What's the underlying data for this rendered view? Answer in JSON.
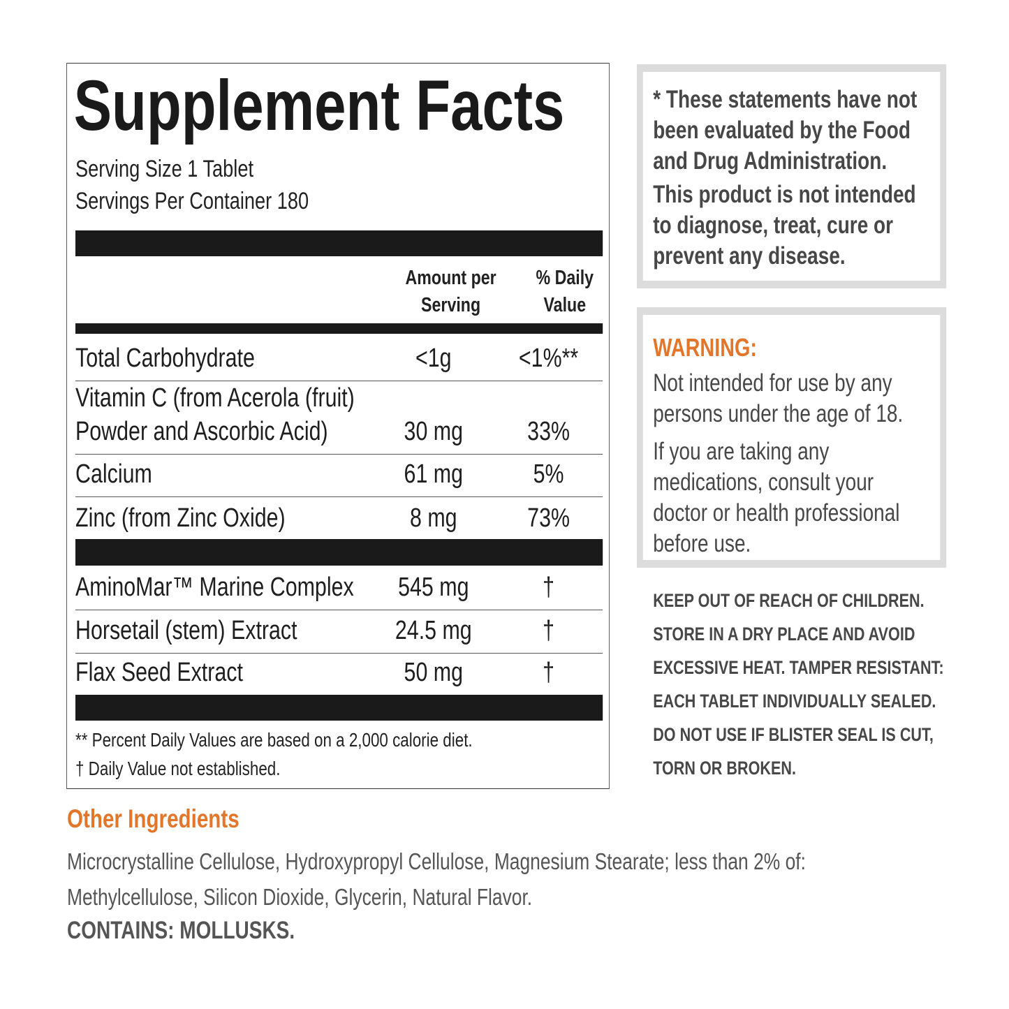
{
  "facts": {
    "title": "Supplement Facts",
    "serving_size": "Serving Size 1 Tablet",
    "servings_per_container": "Servings Per Container 180",
    "headers": [
      "Amount per Serving",
      "% Daily Value"
    ],
    "rows": [
      [
        "Total Carbohydrate",
        "<1g",
        "<1%**"
      ],
      [
        "Vitamin C (from Acerola (fruit) Powder and Ascorbic Acid)",
        "30 mg",
        "33%"
      ],
      [
        "Calcium",
        "61 mg",
        "5%"
      ],
      [
        "Zinc (from Zinc Oxide)",
        "8 mg",
        "73%"
      ]
    ],
    "other_rows": [
      [
        "AminoMar™ Marine Complex",
        "545 mg",
        "†"
      ],
      [
        "Horsetail (stem) Extract",
        "24.5 mg",
        "†"
      ],
      [
        "Flax Seed Extract",
        "50 mg",
        "†"
      ]
    ],
    "footnotes": [
      "** Percent Daily Values are based on a 2,000 calorie diet.",
      "† Daily Value not established."
    ]
  },
  "disclaimer": {
    "lines": [
      "* These statements have not",
      "been evaluated by the Food",
      "and Drug Administration."
    ],
    "lines2": [
      "This product is not intended",
      "to diagnose, treat, cure or",
      "prevent any disease."
    ]
  },
  "warning": {
    "title": "WARNING:",
    "paragraphs": [
      [
        "Not intended for use by any",
        "persons under the age of 18."
      ],
      [
        "If you are taking any",
        "medications, consult  your",
        "doctor or health professional",
        "before use."
      ]
    ]
  },
  "storage": [
    "KEEP OUT OF REACH OF CHILDREN.",
    "STORE IN A DRY PLACE AND AVOID",
    "EXCESSIVE HEAT. TAMPER RESISTANT:",
    "EACH TABLET INDIVIDUALLY SEALED.",
    "DO NOT USE IF BLISTER SEAL IS CUT,",
    "TORN OR BROKEN."
  ],
  "other_ingredients": {
    "title": "Other Ingredients",
    "lines": [
      "Microcrystalline Cellulose, Hydroxypropyl Cellulose, Magnesium Stearate; less than 2% of:",
      "Methylcellulose, Silicon Dioxide, Glycerin, Natural Flavor."
    ],
    "contains": "CONTAINS: MOLLUSKS."
  }
}
